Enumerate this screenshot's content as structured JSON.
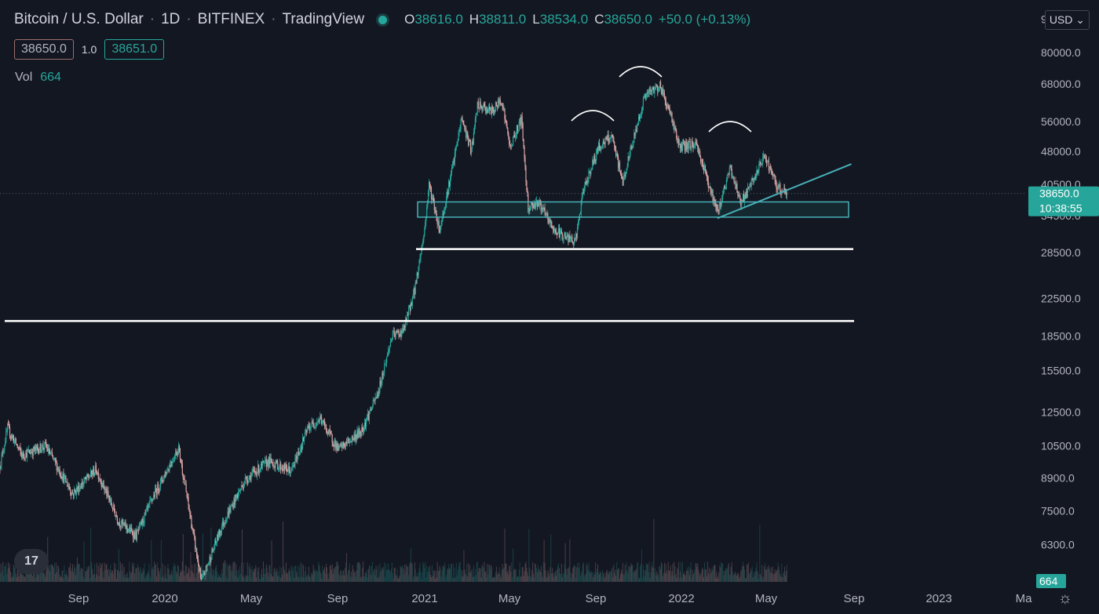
{
  "header": {
    "title": "Bitcoin / U.S. Dollar",
    "interval": "1D",
    "exchange": "BITFINEX",
    "source": "TradingView",
    "ohlc": {
      "o_label": "O",
      "o": "38616.0",
      "h_label": "H",
      "h": "38811.0",
      "l_label": "L",
      "l": "38534.0",
      "c_label": "C",
      "c": "38650.0",
      "change": "+50.0 (+0.13%)"
    },
    "bid_price": "38650.0",
    "spread": "1.0",
    "ask_price": "38651.0",
    "vol_label": "Vol",
    "vol_value": "664"
  },
  "currency_button": "USD",
  "price_axis": {
    "labels": [
      "95000.0",
      "80000.0",
      "68000.0",
      "56000.0",
      "48000.0",
      "40500.0",
      "34500.0",
      "28500.0",
      "22500.0",
      "18500.0",
      "15500.0",
      "12500.0",
      "10500.0",
      "8900.0",
      "7500.0",
      "6300.0"
    ],
    "current_price_label": "38650.0",
    "countdown_label": "10:38:55",
    "volume_badge": "664"
  },
  "time_axis": {
    "labels": [
      "Sep",
      "2020",
      "May",
      "Sep",
      "2021",
      "May",
      "Sep",
      "2022",
      "May",
      "Sep",
      "2023",
      "Ma"
    ]
  },
  "logo_text": "17",
  "chart_data": {
    "type": "candlestick",
    "title": "Bitcoin / U.S. Dollar · 1D · BITFINEX",
    "y_scale": "log",
    "ylim": [
      5200,
      100000
    ],
    "x_range": [
      "2019-06-21",
      "2023-06-04"
    ],
    "grid": false,
    "up_color": "#26a69a",
    "down_color": "#d9a3a3",
    "close_path": [
      [
        "2019-06-21",
        9500
      ],
      [
        "2019-07-01",
        11500
      ],
      [
        "2019-07-20",
        10000
      ],
      [
        "2019-08-20",
        10500
      ],
      [
        "2019-09-25",
        8200
      ],
      [
        "2019-10-26",
        9300
      ],
      [
        "2019-11-25",
        7100
      ],
      [
        "2019-12-18",
        6600
      ],
      [
        "2020-01-10",
        8100
      ],
      [
        "2020-02-12",
        10400
      ],
      [
        "2020-03-13",
        5200
      ],
      [
        "2020-04-10",
        7000
      ],
      [
        "2020-05-10",
        8800
      ],
      [
        "2020-06-10",
        9700
      ],
      [
        "2020-07-10",
        9200
      ],
      [
        "2020-08-01",
        11500
      ],
      [
        "2020-08-17",
        12100
      ],
      [
        "2020-09-10",
        10300
      ],
      [
        "2020-10-10",
        11300
      ],
      [
        "2020-11-01",
        13700
      ],
      [
        "2020-11-20",
        18500
      ],
      [
        "2020-12-05",
        19000
      ],
      [
        "2020-12-20",
        23500
      ],
      [
        "2021-01-02",
        32000
      ],
      [
        "2021-01-08",
        40500
      ],
      [
        "2021-01-22",
        32000
      ],
      [
        "2021-02-10",
        46000
      ],
      [
        "2021-02-20",
        57000
      ],
      [
        "2021-03-05",
        48000
      ],
      [
        "2021-03-13",
        61000
      ],
      [
        "2021-04-01",
        59000
      ],
      [
        "2021-04-14",
        63000
      ],
      [
        "2021-04-25",
        49000
      ],
      [
        "2021-05-10",
        57000
      ],
      [
        "2021-05-19",
        36000
      ],
      [
        "2021-06-01",
        37000
      ],
      [
        "2021-06-22",
        32000
      ],
      [
        "2021-07-20",
        30000
      ],
      [
        "2021-08-01",
        40000
      ],
      [
        "2021-08-20",
        49000
      ],
      [
        "2021-09-06",
        52000
      ],
      [
        "2021-09-21",
        41000
      ],
      [
        "2021-10-05",
        51000
      ],
      [
        "2021-10-20",
        64000
      ],
      [
        "2021-11-09",
        67500
      ],
      [
        "2021-11-25",
        57000
      ],
      [
        "2021-12-05",
        49000
      ],
      [
        "2021-12-27",
        50000
      ],
      [
        "2022-01-10",
        42000
      ],
      [
        "2022-01-24",
        35000
      ],
      [
        "2022-02-10",
        44000
      ],
      [
        "2022-02-24",
        37000
      ],
      [
        "2022-03-05",
        39000
      ],
      [
        "2022-03-28",
        47000
      ],
      [
        "2022-04-12",
        40000
      ],
      [
        "2022-04-26",
        38650
      ]
    ],
    "volume_scale_note": "bars at bottom",
    "horizontal_lines": [
      29000,
      20000
    ],
    "support_zone": [
      34200,
      37000
    ],
    "trendline": [
      [
        "2022-01-24",
        34000
      ],
      [
        "2022-07-20",
        45000
      ]
    ],
    "arc_annotations": [
      "left shoulder",
      "head",
      "right shoulder"
    ]
  }
}
